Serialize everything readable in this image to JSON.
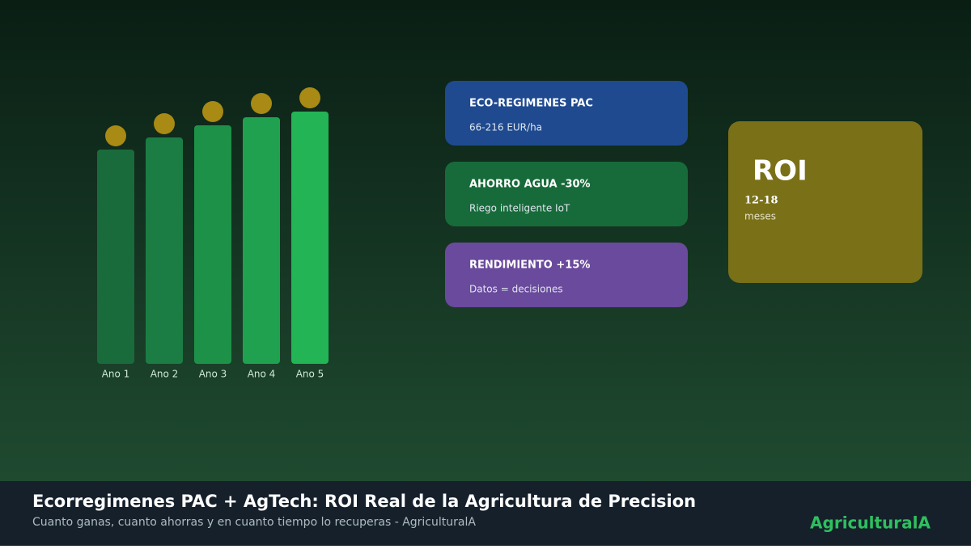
{
  "chart_data": {
    "type": "bar",
    "categories": [
      "Ano 1",
      "Ano 2",
      "Ano 3",
      "Ano 4",
      "Ano 5"
    ],
    "values": [
      265,
      280,
      295,
      305,
      312
    ],
    "colors": [
      "#1a6b3c",
      "#1b7d43",
      "#1e9149",
      "#1fa14f",
      "#22b455"
    ]
  },
  "cards": [
    {
      "title": "ECO-REGIMENES PAC",
      "text": "66-216 EUR/ha",
      "color": "#1f4a8f"
    },
    {
      "title": "AHORRO AGUA -30%",
      "text": "Riego inteligente IoT",
      "color": "#176b3a"
    },
    {
      "title": "RENDIMIENTO +15%",
      "text": "Datos = decisiones",
      "color": "#6a4a9c"
    }
  ],
  "roi": {
    "title": "ROI",
    "value": "12-18",
    "unit": "meses"
  },
  "footer": {
    "title": "Ecorregimenes PAC + AgTech: ROI Real de la Agricultura de Precision",
    "subtitle": "Cuanto ganas, cuanto ahorras y en cuanto tiempo lo recuperas - AgriculturalA",
    "brand": "AgriculturalA"
  }
}
